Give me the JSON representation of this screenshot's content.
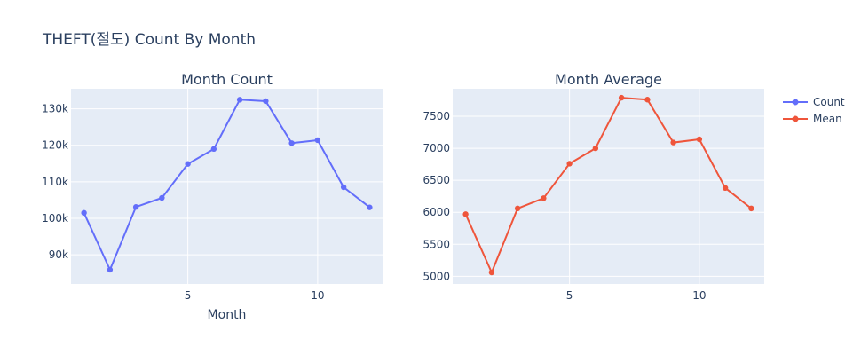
{
  "figure": {
    "title": "THEFT(절도) Count By Month",
    "legend": [
      {
        "label": "Count",
        "color": "#636efa"
      },
      {
        "label": "Mean",
        "color": "#ef553b"
      }
    ]
  },
  "chart_data": [
    {
      "type": "line",
      "title": "Month Count",
      "xlabel": "Month",
      "ylabel": "",
      "series": [
        {
          "name": "Count",
          "color": "#636efa",
          "x": [
            1,
            2,
            3,
            4,
            5,
            6,
            7,
            8,
            9,
            10,
            11,
            12
          ],
          "y": [
            101500,
            85900,
            103100,
            105600,
            114900,
            119000,
            132500,
            132100,
            120600,
            121400,
            108500,
            103000
          ]
        }
      ],
      "xlim": [
        0.5,
        12.5
      ],
      "ylim": [
        82000,
        135500
      ],
      "xticks": [
        5,
        10
      ],
      "xtick_labels": [
        "5",
        "10"
      ],
      "yticks": [
        90000,
        100000,
        110000,
        120000,
        130000
      ],
      "ytick_labels": [
        "90k",
        "100k",
        "110k",
        "120k",
        "130k"
      ],
      "grid": true
    },
    {
      "type": "line",
      "title": "Month Average",
      "xlabel": "",
      "ylabel": "",
      "series": [
        {
          "name": "Mean",
          "color": "#ef553b",
          "x": [
            1,
            2,
            3,
            4,
            5,
            6,
            7,
            8,
            9,
            10,
            11,
            12
          ],
          "y": [
            5970,
            5060,
            6060,
            6220,
            6760,
            7000,
            7790,
            7760,
            7090,
            7140,
            6380,
            6060
          ]
        }
      ],
      "xlim": [
        0.5,
        12.5
      ],
      "ylim": [
        4880,
        7930
      ],
      "xticks": [
        5,
        10
      ],
      "xtick_labels": [
        "5",
        "10"
      ],
      "yticks": [
        5000,
        5500,
        6000,
        6500,
        7000,
        7500
      ],
      "ytick_labels": [
        "5000",
        "5500",
        "6000",
        "6500",
        "7000",
        "7500"
      ],
      "grid": true
    }
  ]
}
